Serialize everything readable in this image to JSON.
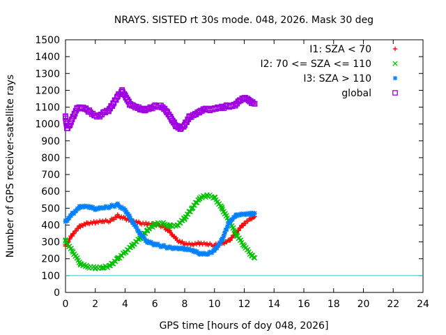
{
  "chart_data": {
    "type": "scatter",
    "title": "NRAYS. SISTED rt 30s mode. 048, 2026. Mask 30 deg",
    "xlabel": "GPS time [hours of doy 048, 2026]",
    "ylabel": "Number of GPS receiver-satellite rays",
    "xlim": [
      0,
      24
    ],
    "ylim": [
      0,
      1500
    ],
    "x_ticks": [
      0,
      2,
      4,
      6,
      8,
      10,
      12,
      14,
      16,
      18,
      20,
      22,
      24
    ],
    "y_ticks": [
      0,
      100,
      200,
      300,
      400,
      500,
      600,
      700,
      800,
      900,
      1000,
      1100,
      1200,
      1300,
      1400,
      1500
    ],
    "legend_position": "top-right",
    "reference_line": {
      "y": 100,
      "color": "#22c8d8"
    },
    "series": [
      {
        "name": "I1: SZA < 70",
        "marker": "+",
        "color": "#ff0000",
        "x": [
          0,
          0.5,
          1,
          1.5,
          2,
          2.5,
          3,
          3.5,
          4,
          4.5,
          5,
          5.5,
          6,
          6.5,
          7,
          7.5,
          8,
          8.5,
          9,
          9.5,
          10,
          10.5,
          11,
          11.5,
          12,
          12.5,
          12.7
        ],
        "y": [
          275,
          350,
          395,
          410,
          415,
          420,
          425,
          455,
          440,
          425,
          410,
          405,
          400,
          395,
          360,
          310,
          290,
          285,
          290,
          285,
          280,
          290,
          310,
          360,
          410,
          440,
          450
        ]
      },
      {
        "name": "I2: 70 <= SZA <= 110",
        "marker": "x",
        "color": "#00c000",
        "x": [
          0,
          0.5,
          1,
          1.5,
          2,
          2.5,
          3,
          3.5,
          4,
          4.5,
          5,
          5.5,
          6,
          6.5,
          7,
          7.5,
          8,
          8.5,
          9,
          9.5,
          10,
          10.5,
          11,
          11.5,
          12,
          12.5,
          12.7
        ],
        "y": [
          305,
          240,
          170,
          150,
          145,
          145,
          160,
          200,
          240,
          280,
          320,
          370,
          405,
          410,
          395,
          400,
          440,
          500,
          560,
          575,
          565,
          500,
          420,
          340,
          275,
          220,
          205
        ]
      },
      {
        "name": "I3: SZA > 110",
        "marker": "*",
        "color": "#0080ff",
        "x": [
          0,
          0.5,
          1,
          1.5,
          2,
          2.5,
          3,
          3.5,
          4,
          4.5,
          5,
          5.5,
          6,
          6.5,
          7,
          7.5,
          8,
          8.5,
          9,
          9.5,
          10,
          10.5,
          11,
          11.5,
          12,
          12.5,
          12.7
        ],
        "y": [
          420,
          470,
          510,
          510,
          495,
          500,
          510,
          520,
          490,
          420,
          350,
          300,
          285,
          275,
          265,
          265,
          260,
          250,
          230,
          225,
          250,
          310,
          420,
          460,
          465,
          465,
          470
        ]
      },
      {
        "name": "global",
        "marker": "square",
        "color": "#a000e0",
        "x": [
          0,
          0.1,
          0.3,
          0.6,
          0.8,
          1.0,
          1.3,
          1.6,
          2.0,
          2.3,
          2.6,
          2.9,
          3.2,
          3.5,
          3.8,
          4.0,
          4.3,
          4.6,
          5.0,
          5.3,
          5.6,
          6.0,
          6.4,
          6.8,
          7.1,
          7.4,
          7.7,
          8.0,
          8.3,
          8.7,
          9.0,
          9.4,
          9.7,
          10.0,
          10.4,
          10.8,
          11.1,
          11.4,
          11.7,
          12.0,
          12.3,
          12.5,
          12.7
        ],
        "y": [
          1040,
          975,
          1000,
          1060,
          1095,
          1095,
          1090,
          1075,
          1050,
          1050,
          1070,
          1080,
          1120,
          1165,
          1195,
          1170,
          1120,
          1105,
          1090,
          1080,
          1090,
          1105,
          1110,
          1075,
          1030,
          990,
          970,
          995,
          1040,
          1060,
          1075,
          1090,
          1085,
          1090,
          1095,
          1105,
          1110,
          1115,
          1140,
          1155,
          1140,
          1125,
          1120
        ]
      }
    ]
  }
}
